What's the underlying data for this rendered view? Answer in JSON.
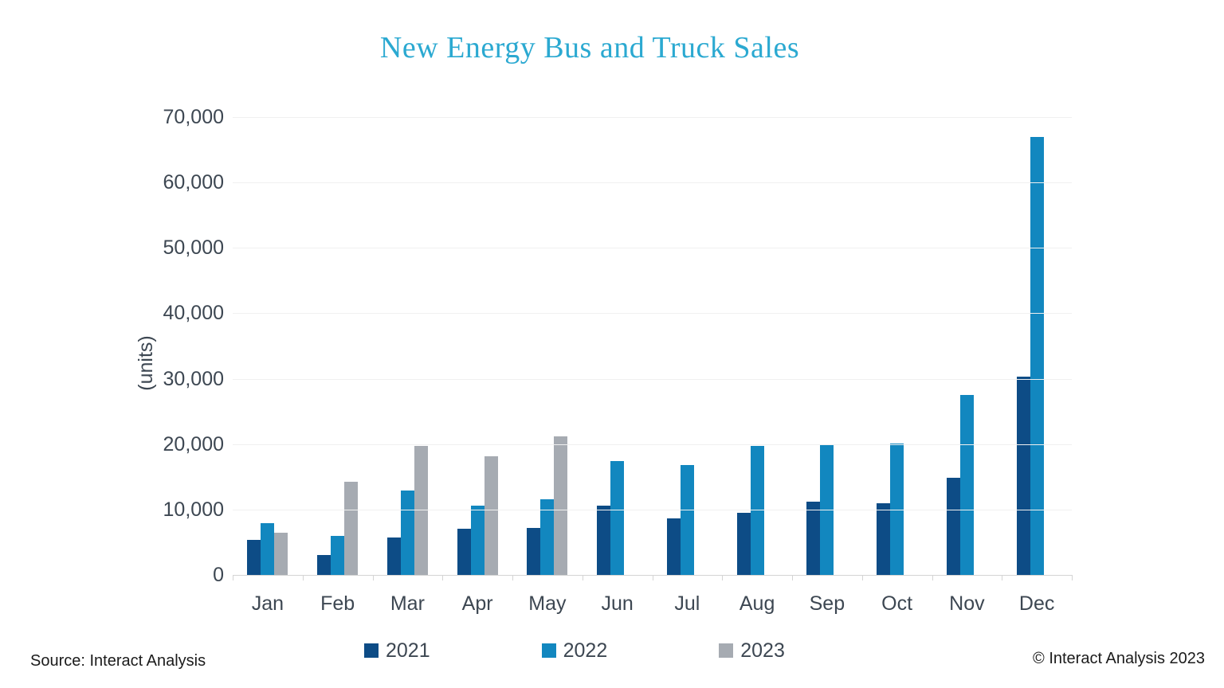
{
  "chart_data": {
    "type": "bar",
    "title": "New Energy Bus and Truck Sales",
    "xlabel": "",
    "ylabel": "(units)",
    "ylim": [
      0,
      70000
    ],
    "ytick_step": 10000,
    "ytick_labels": [
      "0",
      "10,000",
      "20,000",
      "30,000",
      "40,000",
      "50,000",
      "60,000",
      "70,000"
    ],
    "grid": "horizontal",
    "legend_position": "bottom",
    "categories": [
      "Jan",
      "Feb",
      "Mar",
      "Apr",
      "May",
      "Jun",
      "Jul",
      "Aug",
      "Sep",
      "Oct",
      "Nov",
      "Dec"
    ],
    "series": [
      {
        "name": "2021",
        "color": "#0d4c86",
        "values": [
          5300,
          3100,
          5700,
          7100,
          7200,
          10600,
          8600,
          9500,
          11200,
          10900,
          14900,
          30300
        ]
      },
      {
        "name": "2022",
        "color": "#1287bf",
        "values": [
          7900,
          6000,
          12900,
          10600,
          11600,
          17400,
          16800,
          19700,
          19900,
          20100,
          27500,
          66900
        ]
      },
      {
        "name": "2023",
        "color": "#a6abb2",
        "values": [
          6500,
          14200,
          19700,
          18100,
          21200,
          null,
          null,
          null,
          null,
          null,
          null,
          null
        ]
      }
    ]
  },
  "footer": {
    "source": "Source: Interact Analysis",
    "copyright": "© Interact Analysis 2023"
  }
}
